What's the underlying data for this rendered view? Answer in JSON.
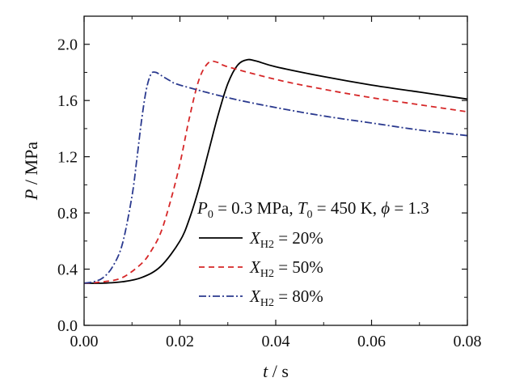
{
  "chart_data": {
    "type": "line",
    "xlabel": {
      "symbol": "t",
      "rest": " / s"
    },
    "ylabel": {
      "symbol": "P",
      "rest": " / MPa"
    },
    "xlim": [
      0.0,
      0.08
    ],
    "ylim": [
      0.0,
      2.2
    ],
    "xticks": [
      "0.00",
      "0.02",
      "0.04",
      "0.06",
      "0.08"
    ],
    "yticks": [
      "0.0",
      "0.4",
      "0.8",
      "1.2",
      "1.6",
      "2.0"
    ],
    "grid": false,
    "legend_position": "bottom-right",
    "conditions": {
      "p_symbol": "P",
      "p_sub": "0",
      "p_value": " = 0.3 MPa, ",
      "t_symbol": "T",
      "t_sub": "0",
      "t_value": " = 450 K, ",
      "phi_symbol": "ϕ",
      "phi_value": " = 1.3"
    },
    "series": [
      {
        "name": "X_H2 = 20%",
        "label_symbol": "X",
        "label_sub": "H2",
        "label_value": " = 20%",
        "color": "#000000",
        "dash": "none",
        "x": [
          0.0,
          0.004,
          0.008,
          0.012,
          0.016,
          0.02,
          0.022,
          0.024,
          0.026,
          0.028,
          0.03,
          0.032,
          0.034,
          0.036,
          0.04,
          0.05,
          0.06,
          0.07,
          0.08
        ],
        "y": [
          0.3,
          0.3,
          0.31,
          0.34,
          0.42,
          0.6,
          0.76,
          0.98,
          1.24,
          1.5,
          1.72,
          1.85,
          1.89,
          1.88,
          1.84,
          1.77,
          1.71,
          1.66,
          1.61
        ]
      },
      {
        "name": "X_H2 = 50%",
        "label_symbol": "X",
        "label_sub": "H2",
        "label_value": " = 50%",
        "color": "#d62728",
        "dash": "7,5",
        "x": [
          0.0,
          0.004,
          0.008,
          0.012,
          0.014,
          0.016,
          0.018,
          0.02,
          0.022,
          0.024,
          0.026,
          0.028,
          0.03,
          0.04,
          0.05,
          0.06,
          0.07,
          0.08
        ],
        "y": [
          0.3,
          0.31,
          0.34,
          0.44,
          0.53,
          0.66,
          0.88,
          1.15,
          1.48,
          1.75,
          1.87,
          1.87,
          1.84,
          1.75,
          1.68,
          1.62,
          1.57,
          1.52
        ]
      },
      {
        "name": "X_H2 = 80%",
        "label_symbol": "X",
        "label_sub": "H2",
        "label_value": " = 80%",
        "color": "#2b3a8f",
        "dash": "9,3,2,3",
        "x": [
          0.0,
          0.002,
          0.004,
          0.006,
          0.008,
          0.01,
          0.011,
          0.012,
          0.013,
          0.014,
          0.015,
          0.016,
          0.018,
          0.02,
          0.03,
          0.04,
          0.05,
          0.06,
          0.07,
          0.08
        ],
        "y": [
          0.3,
          0.31,
          0.34,
          0.42,
          0.58,
          0.92,
          1.18,
          1.46,
          1.68,
          1.79,
          1.8,
          1.78,
          1.74,
          1.71,
          1.62,
          1.55,
          1.49,
          1.44,
          1.39,
          1.35
        ]
      }
    ]
  }
}
